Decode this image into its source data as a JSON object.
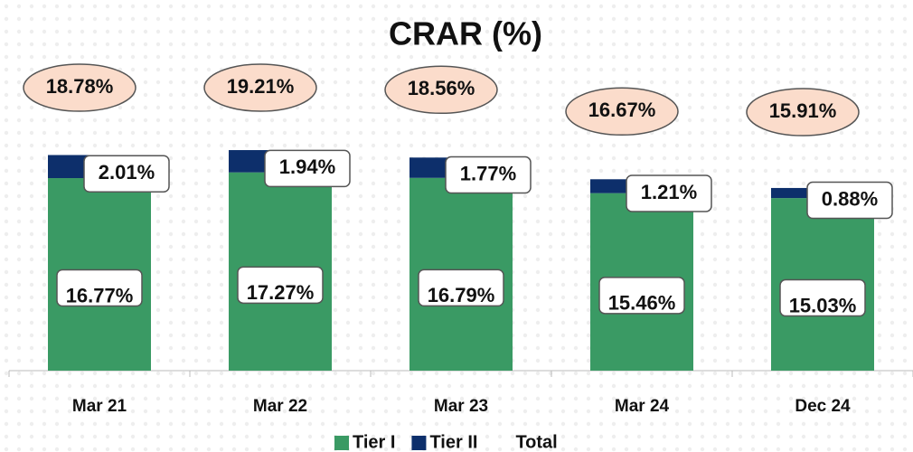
{
  "chart_data": {
    "type": "bar",
    "stacked": true,
    "title": "CRAR (%)",
    "categories": [
      "Mar 21",
      "Mar 22",
      "Mar 23",
      "Mar 24",
      "Dec 24"
    ],
    "series": [
      {
        "name": "Tier I",
        "color": "#3a9a64",
        "values": [
          16.77,
          17.27,
          16.79,
          15.46,
          15.03
        ],
        "value_labels": [
          "16.77%",
          "17.27%",
          "16.79%",
          "15.46%",
          "15.03%"
        ]
      },
      {
        "name": "Tier II",
        "color": "#0d2f6b",
        "values": [
          2.01,
          1.94,
          1.77,
          1.21,
          0.88
        ],
        "value_labels": [
          "2.01%",
          "1.94%",
          "1.77%",
          "1.21%",
          "0.88%"
        ]
      },
      {
        "name": "Total",
        "values": [
          18.78,
          19.21,
          18.56,
          16.67,
          15.91
        ],
        "value_labels": [
          "18.78%",
          "19.21%",
          "18.56%",
          "16.67%",
          "15.91%"
        ]
      }
    ],
    "ylim": [
      0,
      25
    ],
    "legend": "bottom"
  }
}
